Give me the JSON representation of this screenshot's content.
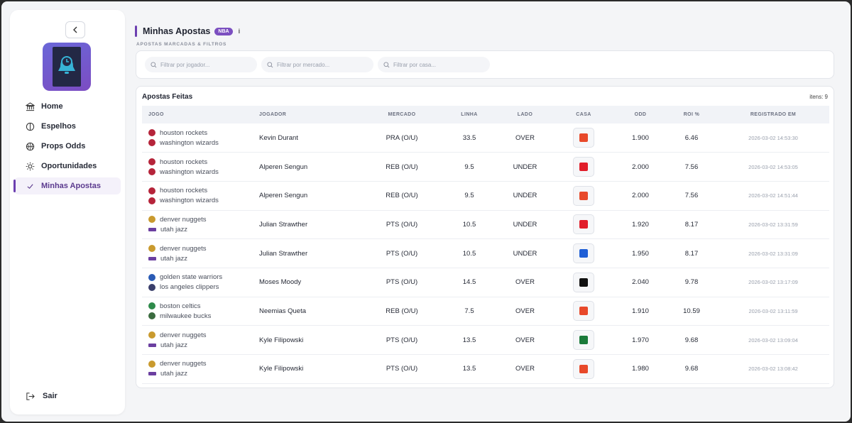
{
  "sidebar": {
    "nav": [
      {
        "label": "Home",
        "icon": "bank-icon"
      },
      {
        "label": "Espelhos",
        "icon": "mirror-icon"
      },
      {
        "label": "Props Odds",
        "icon": "basketball-icon"
      },
      {
        "label": "Oportunidades",
        "icon": "sun-icon"
      },
      {
        "label": "Minhas Apostas",
        "icon": "check-icon",
        "active": true
      }
    ],
    "logout_label": "Sair",
    "accent": "#6c3fb0"
  },
  "header": {
    "title": "Minhas Apostas",
    "badge": "NBA",
    "info_glyph": "i",
    "subtitle": "APOSTAS MARCADAS & FILTROS"
  },
  "filters": {
    "player_placeholder": "Filtrar por jogador...",
    "market_placeholder": "Filtrar por mercado...",
    "book_placeholder": "Filtrar por casa..."
  },
  "card": {
    "title": "Apostas Feitas",
    "count_label": "itens: 9"
  },
  "table": {
    "columns": [
      "JOGO",
      "JOGADOR",
      "MERCADO",
      "LINHA",
      "LADO",
      "CASA",
      "ODD",
      "ROI %",
      "REGISTRADO EM"
    ],
    "rows": [
      {
        "home": "houston rockets",
        "away": "washington wizards",
        "home_color": "#b5243a",
        "away_color": "#b5243a",
        "player": "Kevin Durant",
        "market": "PRA (O/U)",
        "line": "33.5",
        "side": "OVER",
        "book_color": "#e8492a",
        "odd": "1.900",
        "roi": "6.46",
        "date": "2026-03-02 14:53:30"
      },
      {
        "home": "houston rockets",
        "away": "washington wizards",
        "home_color": "#b5243a",
        "away_color": "#b5243a",
        "player": "Alperen Sengun",
        "market": "REB (O/U)",
        "line": "9.5",
        "side": "UNDER",
        "book_color": "#e11d2a",
        "odd": "2.000",
        "roi": "7.56",
        "date": "2026-03-02 14:53:05"
      },
      {
        "home": "houston rockets",
        "away": "washington wizards",
        "home_color": "#b5243a",
        "away_color": "#b5243a",
        "player": "Alperen Sengun",
        "market": "REB (O/U)",
        "line": "9.5",
        "side": "UNDER",
        "book_color": "#e8492a",
        "odd": "2.000",
        "roi": "7.56",
        "date": "2026-03-02 14:51:44"
      },
      {
        "home": "denver nuggets",
        "away": "utah jazz",
        "home_color": "#c99a2e",
        "away_color": "#6b3fa0",
        "player": "Julian Strawther",
        "market": "PTS (O/U)",
        "line": "10.5",
        "side": "UNDER",
        "book_color": "#e11d2a",
        "odd": "1.920",
        "roi": "8.17",
        "date": "2026-03-02 13:31:59"
      },
      {
        "home": "denver nuggets",
        "away": "utah jazz",
        "home_color": "#c99a2e",
        "away_color": "#6b3fa0",
        "player": "Julian Strawther",
        "market": "PTS (O/U)",
        "line": "10.5",
        "side": "UNDER",
        "book_color": "#1f5fd6",
        "odd": "1.950",
        "roi": "8.17",
        "date": "2026-03-02 13:31:09"
      },
      {
        "home": "golden state warriors",
        "away": "los angeles clippers",
        "home_color": "#2a5bb5",
        "away_color": "#3a3f6b",
        "player": "Moses Moody",
        "market": "PTS (O/U)",
        "line": "14.5",
        "side": "OVER",
        "book_color": "#111111",
        "odd": "2.040",
        "roi": "9.78",
        "date": "2026-03-02 13:17:09"
      },
      {
        "home": "boston celtics",
        "away": "milwaukee bucks",
        "home_color": "#2e8a4a",
        "away_color": "#3b6b3f",
        "player": "Neemias Queta",
        "market": "REB (O/U)",
        "line": "7.5",
        "side": "OVER",
        "book_color": "#e8492a",
        "odd": "1.910",
        "roi": "10.59",
        "date": "2026-03-02 13:11:59"
      },
      {
        "home": "denver nuggets",
        "away": "utah jazz",
        "home_color": "#c99a2e",
        "away_color": "#6b3fa0",
        "player": "Kyle Filipowski",
        "market": "PTS (O/U)",
        "line": "13.5",
        "side": "OVER",
        "book_color": "#1a7a3a",
        "odd": "1.970",
        "roi": "9.68",
        "date": "2026-03-02 13:09:04"
      },
      {
        "home": "denver nuggets",
        "away": "utah jazz",
        "home_color": "#c99a2e",
        "away_color": "#6b3fa0",
        "player": "Kyle Filipowski",
        "market": "PTS (O/U)",
        "line": "13.5",
        "side": "OVER",
        "book_color": "#e8492a",
        "odd": "1.980",
        "roi": "9.68",
        "date": "2026-03-02 13:08:42"
      }
    ]
  }
}
